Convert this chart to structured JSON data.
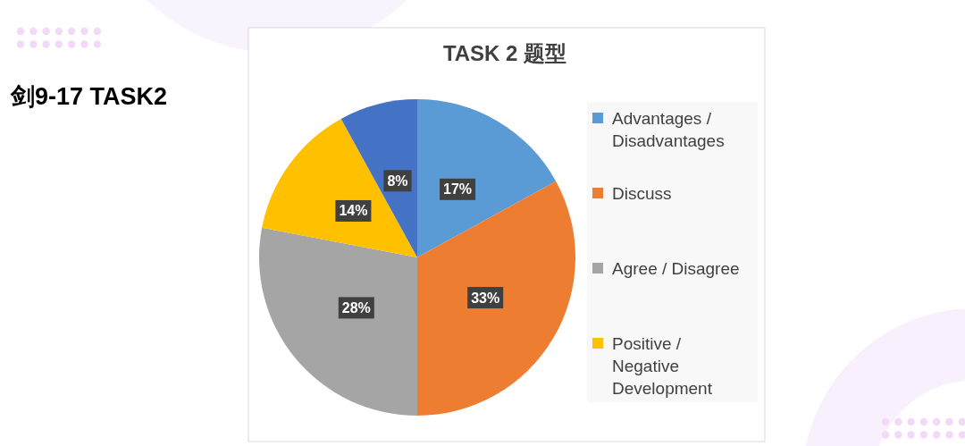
{
  "chart_data": {
    "type": "pie",
    "title": "TASK 2 题型",
    "categories": [
      "Advantages / Disadvantages",
      "Discuss",
      "Agree / Disagree",
      "Positive / Negative Development",
      null
    ],
    "values": [
      17,
      33,
      28,
      14,
      8
    ],
    "colors": [
      "#5b9bd5",
      "#ed7d31",
      "#a5a5a5",
      "#ffc000",
      "#4472c4"
    ],
    "value_labels": [
      "17%",
      "33%",
      "28%",
      "14%",
      "8%"
    ],
    "legend": "right",
    "annotations": [
      "剑9-17 TASK2"
    ]
  }
}
